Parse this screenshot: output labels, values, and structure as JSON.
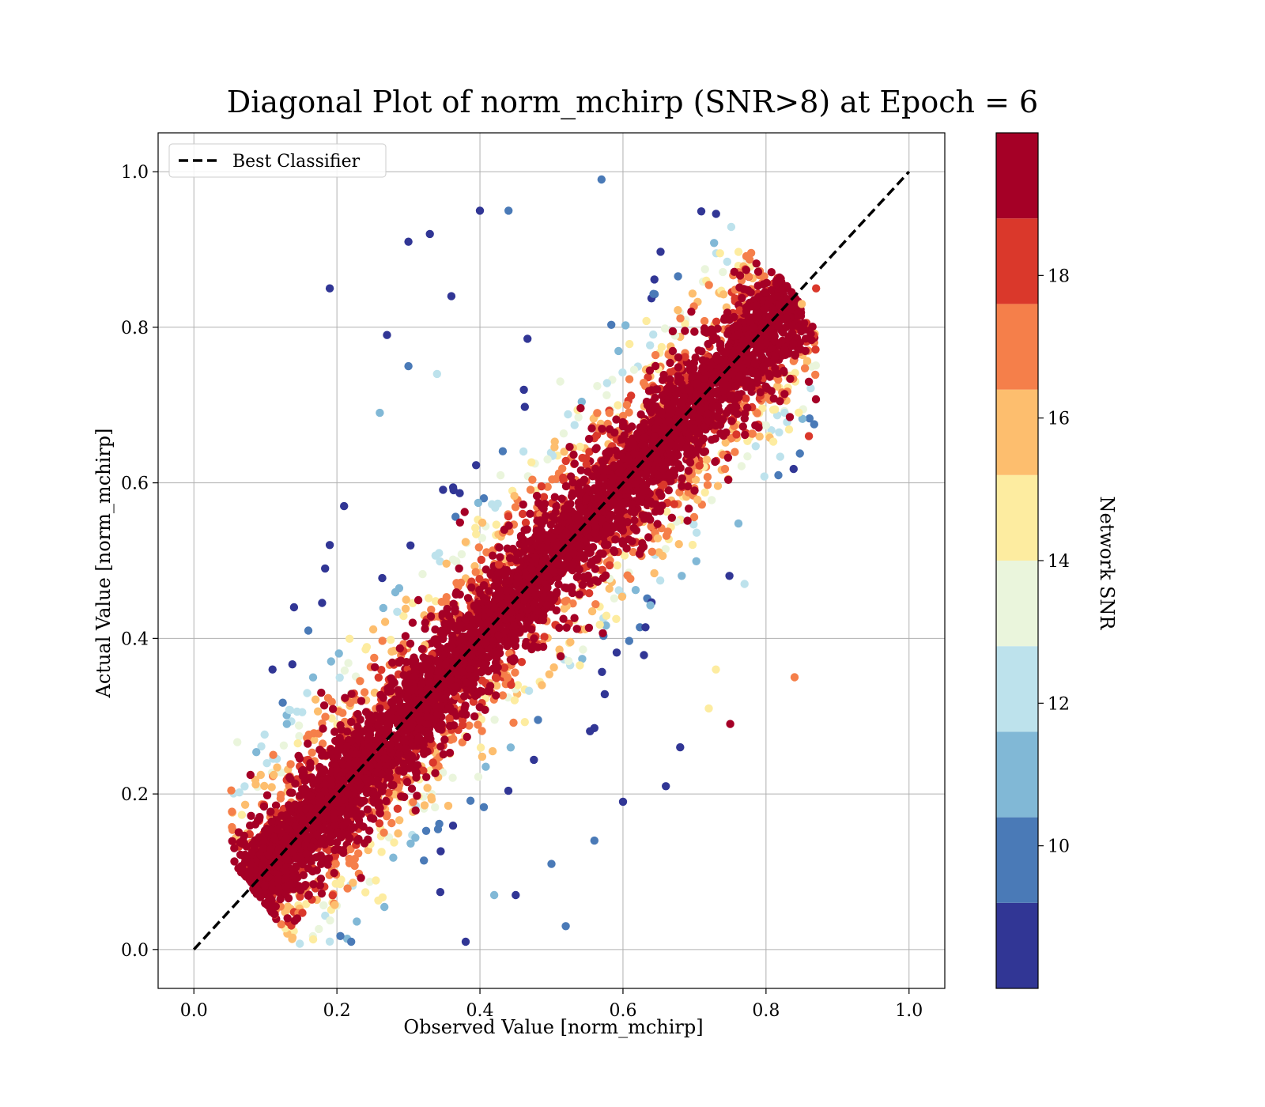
{
  "chart_data": {
    "type": "scatter",
    "title": "Diagonal Plot of norm_mchirp (SNR>8) at Epoch = 6",
    "xlabel": "Observed Value [norm_mchirp]",
    "ylabel": "Actual Value [norm_mchirp]",
    "xlim": [
      -0.05,
      1.05
    ],
    "ylim": [
      -0.05,
      1.05
    ],
    "xticks": [
      "0.0",
      "0.2",
      "0.4",
      "0.6",
      "0.8",
      "1.0"
    ],
    "yticks": [
      "0.0",
      "0.2",
      "0.4",
      "0.6",
      "0.8",
      "1.0"
    ],
    "grid": true,
    "legend": {
      "placement": "top-left",
      "entries": [
        {
          "label": "Best Classifier",
          "style": "dashed",
          "color": "#000000"
        }
      ]
    },
    "reference_line": {
      "name": "Best Classifier",
      "x": [
        0.0,
        1.0
      ],
      "y": [
        0.0,
        1.0
      ]
    },
    "colorbar": {
      "label": "Network SNR",
      "range": [
        8,
        20
      ],
      "ticks": [
        "10",
        "12",
        "14",
        "16",
        "18"
      ],
      "bins": [
        {
          "from": 8.0,
          "to": 9.2,
          "color": "#313695"
        },
        {
          "from": 9.2,
          "to": 10.4,
          "color": "#4a7ab7"
        },
        {
          "from": 10.4,
          "to": 11.6,
          "color": "#81b8d6"
        },
        {
          "from": 11.6,
          "to": 12.8,
          "color": "#bde2ec"
        },
        {
          "from": 12.8,
          "to": 14.0,
          "color": "#eaf5dc"
        },
        {
          "from": 14.0,
          "to": 15.2,
          "color": "#fdeca0"
        },
        {
          "from": 15.2,
          "to": 16.4,
          "color": "#fdbe6e"
        },
        {
          "from": 16.4,
          "to": 17.6,
          "color": "#f57f4a"
        },
        {
          "from": 17.6,
          "to": 18.8,
          "color": "#da382b"
        },
        {
          "from": 18.8,
          "to": 20.0,
          "color": "#a50026"
        }
      ]
    },
    "series": [
      {
        "points": [
          [
            0.19,
            0.85,
            9
          ],
          [
            0.3,
            0.91,
            9
          ],
          [
            0.33,
            0.92,
            9
          ],
          [
            0.4,
            0.95,
            9
          ],
          [
            0.27,
            0.79,
            9
          ],
          [
            0.36,
            0.84,
            9
          ],
          [
            0.21,
            0.57,
            9
          ],
          [
            0.19,
            0.52,
            9
          ],
          [
            0.14,
            0.44,
            9
          ],
          [
            0.11,
            0.36,
            9
          ],
          [
            0.66,
            0.21,
            9
          ],
          [
            0.6,
            0.19,
            9
          ],
          [
            0.52,
            0.03,
            10
          ],
          [
            0.56,
            0.14,
            10
          ],
          [
            0.68,
            0.26,
            9
          ],
          [
            0.38,
            0.01,
            9
          ],
          [
            0.22,
            0.01,
            10
          ],
          [
            0.42,
            0.07,
            11
          ],
          [
            0.45,
            0.07,
            9
          ],
          [
            0.5,
            0.11,
            10
          ],
          [
            0.44,
            0.95,
            10
          ],
          [
            0.57,
            0.99,
            10
          ],
          [
            0.26,
            0.69,
            11
          ],
          [
            0.3,
            0.75,
            10
          ],
          [
            0.34,
            0.74,
            12
          ],
          [
            0.16,
            0.41,
            10
          ],
          [
            0.13,
            0.29,
            11
          ],
          [
            0.84,
            0.35,
            17
          ],
          [
            0.75,
            0.29,
            19
          ],
          [
            0.72,
            0.31,
            15
          ],
          [
            0.77,
            0.47,
            12
          ],
          [
            0.73,
            0.36,
            14
          ],
          [
            0.87,
            0.85,
            18
          ],
          [
            0.86,
            0.66,
            18
          ],
          [
            0.86,
            0.73,
            19
          ],
          [
            0.85,
            0.83,
            16
          ]
        ]
      }
    ]
  }
}
